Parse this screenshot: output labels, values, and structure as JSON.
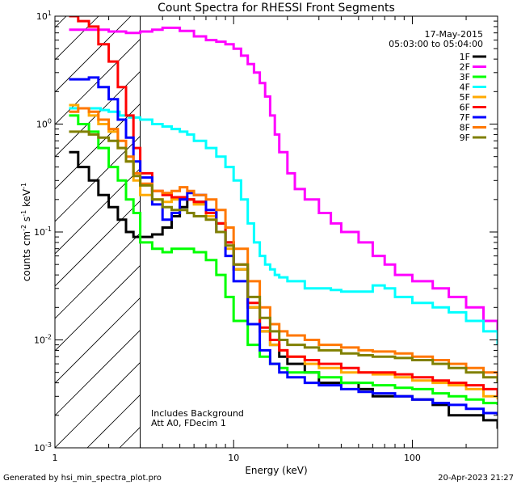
{
  "chart_data": {
    "type": "line",
    "title": "Count Spectra for RHESSI Front Segments",
    "xlabel": "Energy (keV)",
    "ylabel_parts": [
      "counts cm",
      "-2",
      " s",
      "-1",
      " keV",
      "-1"
    ],
    "xscale": "log",
    "yscale": "log",
    "xlim": [
      1,
      300
    ],
    "ylim": [
      0.001,
      10
    ],
    "x_ticks": [
      {
        "value": 1,
        "label": "1"
      },
      {
        "value": 10,
        "label": "10"
      },
      {
        "value": 100,
        "label": "100"
      }
    ],
    "y_ticks": [
      {
        "value": 0.001,
        "base": "10",
        "exp": "-3"
      },
      {
        "value": 0.01,
        "base": "10",
        "exp": "-2"
      },
      {
        "value": 0.1,
        "base": "10",
        "exp": "-1"
      },
      {
        "value": 1,
        "base": "10",
        "exp": "0"
      },
      {
        "value": 10,
        "base": "10",
        "exp": "1"
      }
    ],
    "date": "17-May-2015",
    "time_range": "05:03:00 to 05:04:00",
    "annotations": [
      "Includes Background",
      "Att A0, FDecim 1"
    ],
    "hatched_region": [
      1,
      3
    ],
    "series": [
      {
        "name": "1F",
        "color": "#000000",
        "x": [
          1.2,
          1.35,
          1.55,
          1.75,
          2.0,
          2.25,
          2.5,
          2.75,
          3.0,
          3.5,
          4.0,
          4.5,
          5.0,
          5.5,
          6.0,
          7.0,
          8.0,
          9.0,
          10.0,
          12,
          14,
          16,
          18,
          20,
          25,
          30,
          40,
          50,
          60,
          80,
          100,
          130,
          160,
          200,
          250,
          300
        ],
        "y": [
          0.55,
          0.4,
          0.3,
          0.22,
          0.17,
          0.13,
          0.1,
          0.09,
          0.09,
          0.095,
          0.11,
          0.14,
          0.17,
          0.2,
          0.19,
          0.15,
          0.12,
          0.08,
          0.045,
          0.02,
          0.012,
          0.009,
          0.007,
          0.006,
          0.005,
          0.004,
          0.004,
          0.0035,
          0.003,
          0.003,
          0.0028,
          0.0025,
          0.002,
          0.002,
          0.0018,
          0.0015
        ]
      },
      {
        "name": "2F",
        "color": "#ff00ff",
        "x": [
          1.2,
          1.5,
          2.0,
          2.5,
          3.0,
          3.5,
          4.0,
          5.0,
          6.0,
          7.0,
          8.0,
          9.0,
          10.0,
          11.0,
          12.0,
          13.0,
          14.0,
          15.0,
          16.0,
          17.0,
          18.0,
          20.0,
          22,
          25,
          30,
          35,
          40,
          50,
          60,
          70,
          80,
          100,
          130,
          160,
          200,
          250,
          300
        ],
        "y": [
          7.5,
          7.5,
          7.2,
          7.0,
          7.2,
          7.5,
          7.8,
          7.3,
          6.5,
          6.0,
          5.8,
          5.5,
          5.0,
          4.3,
          3.6,
          3.0,
          2.4,
          1.8,
          1.2,
          0.8,
          0.55,
          0.35,
          0.25,
          0.2,
          0.15,
          0.12,
          0.1,
          0.08,
          0.06,
          0.05,
          0.04,
          0.035,
          0.03,
          0.025,
          0.02,
          0.015,
          0.009
        ]
      },
      {
        "name": "3F",
        "color": "#00ff00",
        "x": [
          1.2,
          1.35,
          1.55,
          1.75,
          2.0,
          2.25,
          2.5,
          2.75,
          3.0,
          3.5,
          4.0,
          4.5,
          5.0,
          5.5,
          6.0,
          7.0,
          8.0,
          9.0,
          10.0,
          12,
          14,
          16,
          18,
          20,
          25,
          30,
          40,
          50,
          60,
          80,
          100,
          130,
          160,
          200,
          250,
          300
        ],
        "y": [
          1.2,
          1.0,
          0.85,
          0.6,
          0.4,
          0.3,
          0.2,
          0.15,
          0.08,
          0.07,
          0.065,
          0.07,
          0.07,
          0.07,
          0.065,
          0.055,
          0.04,
          0.025,
          0.015,
          0.009,
          0.007,
          0.006,
          0.0055,
          0.005,
          0.005,
          0.0045,
          0.004,
          0.004,
          0.0038,
          0.0036,
          0.0035,
          0.0032,
          0.003,
          0.0028,
          0.0026,
          0.0025
        ]
      },
      {
        "name": "4F",
        "color": "#00ffff",
        "x": [
          1.2,
          1.4,
          1.6,
          1.8,
          2.0,
          2.3,
          2.6,
          3.0,
          3.5,
          4.0,
          4.5,
          5.0,
          5.5,
          6.0,
          7.0,
          8.0,
          9.0,
          10.0,
          11.0,
          12.0,
          13.0,
          14.0,
          15.0,
          16.0,
          17.0,
          18.0,
          20,
          25,
          30,
          35,
          40,
          50,
          60,
          70,
          80,
          100,
          130,
          160,
          200,
          250,
          300
        ],
        "y": [
          1.4,
          1.4,
          1.4,
          1.35,
          1.3,
          1.2,
          1.15,
          1.1,
          1.0,
          0.95,
          0.9,
          0.85,
          0.8,
          0.7,
          0.6,
          0.5,
          0.4,
          0.3,
          0.2,
          0.12,
          0.08,
          0.06,
          0.05,
          0.045,
          0.04,
          0.038,
          0.035,
          0.03,
          0.03,
          0.029,
          0.028,
          0.028,
          0.032,
          0.03,
          0.025,
          0.022,
          0.02,
          0.018,
          0.015,
          0.012,
          0.009
        ]
      },
      {
        "name": "5F",
        "color": "#ffaa00",
        "x": [
          1.2,
          1.35,
          1.55,
          1.75,
          2.0,
          2.25,
          2.5,
          2.75,
          3.0,
          3.5,
          4.0,
          4.5,
          5.0,
          5.5,
          6.0,
          7.0,
          8.0,
          9.0,
          10.0,
          12,
          14,
          16,
          18,
          20,
          25,
          30,
          40,
          50,
          60,
          80,
          100,
          130,
          160,
          200,
          250,
          300
        ],
        "y": [
          1.5,
          1.4,
          1.2,
          1.0,
          0.85,
          0.6,
          0.45,
          0.3,
          0.22,
          0.2,
          0.19,
          0.2,
          0.21,
          0.2,
          0.18,
          0.14,
          0.1,
          0.07,
          0.045,
          0.02,
          0.012,
          0.009,
          0.008,
          0.007,
          0.006,
          0.0055,
          0.005,
          0.005,
          0.0048,
          0.0045,
          0.0042,
          0.004,
          0.0038,
          0.0035,
          0.003,
          0.0028
        ]
      },
      {
        "name": "6F",
        "color": "#ff0000",
        "x": [
          1.2,
          1.35,
          1.55,
          1.75,
          2.0,
          2.25,
          2.5,
          2.75,
          3.0,
          3.5,
          4.0,
          4.5,
          5.0,
          5.5,
          6.0,
          7.0,
          8.0,
          9.0,
          10.0,
          12,
          14,
          16,
          18,
          20,
          25,
          30,
          40,
          50,
          60,
          80,
          100,
          130,
          160,
          200,
          250,
          300
        ],
        "y": [
          10.0,
          9.0,
          8.0,
          5.5,
          3.8,
          2.2,
          1.2,
          0.6,
          0.35,
          0.24,
          0.22,
          0.21,
          0.21,
          0.2,
          0.19,
          0.15,
          0.12,
          0.08,
          0.05,
          0.022,
          0.013,
          0.01,
          0.008,
          0.007,
          0.0065,
          0.006,
          0.0055,
          0.005,
          0.005,
          0.0048,
          0.0045,
          0.0042,
          0.004,
          0.0038,
          0.0035,
          0.003
        ]
      },
      {
        "name": "7F",
        "color": "#0000ff",
        "x": [
          1.2,
          1.35,
          1.55,
          1.75,
          2.0,
          2.25,
          2.5,
          2.75,
          3.0,
          3.5,
          4.0,
          4.5,
          5.0,
          5.5,
          6.0,
          7.0,
          8.0,
          9.0,
          10.0,
          12,
          14,
          16,
          18,
          20,
          25,
          30,
          40,
          50,
          60,
          80,
          100,
          130,
          160,
          200,
          250,
          300
        ],
        "y": [
          2.6,
          2.6,
          2.7,
          2.2,
          1.7,
          1.1,
          0.75,
          0.45,
          0.32,
          0.18,
          0.13,
          0.15,
          0.2,
          0.23,
          0.22,
          0.16,
          0.1,
          0.06,
          0.035,
          0.014,
          0.008,
          0.006,
          0.005,
          0.0045,
          0.004,
          0.0038,
          0.0035,
          0.0033,
          0.0032,
          0.003,
          0.0028,
          0.0026,
          0.0025,
          0.0023,
          0.0021,
          0.002
        ]
      },
      {
        "name": "8F",
        "color": "#ff7700",
        "x": [
          1.2,
          1.35,
          1.55,
          1.75,
          2.0,
          2.25,
          2.5,
          2.75,
          3.0,
          3.5,
          4.0,
          4.5,
          5.0,
          5.5,
          6.0,
          7.0,
          8.0,
          9.0,
          10.0,
          12,
          14,
          16,
          18,
          20,
          25,
          30,
          40,
          50,
          60,
          80,
          100,
          130,
          160,
          200,
          250,
          300
        ],
        "y": [
          1.3,
          1.4,
          1.3,
          1.1,
          0.9,
          0.7,
          0.5,
          0.35,
          0.28,
          0.24,
          0.23,
          0.24,
          0.26,
          0.24,
          0.22,
          0.2,
          0.16,
          0.11,
          0.07,
          0.035,
          0.02,
          0.014,
          0.012,
          0.011,
          0.01,
          0.009,
          0.0085,
          0.008,
          0.0078,
          0.0075,
          0.007,
          0.0065,
          0.006,
          0.0055,
          0.005,
          0.0045
        ]
      },
      {
        "name": "9F",
        "color": "#808000",
        "x": [
          1.2,
          1.35,
          1.55,
          1.75,
          2.0,
          2.25,
          2.5,
          2.75,
          3.0,
          3.5,
          4.0,
          4.5,
          5.0,
          5.5,
          6.0,
          7.0,
          8.0,
          9.0,
          10.0,
          12,
          14,
          16,
          18,
          20,
          25,
          30,
          40,
          50,
          60,
          80,
          100,
          130,
          160,
          200,
          250,
          300
        ],
        "y": [
          0.85,
          0.85,
          0.8,
          0.75,
          0.7,
          0.6,
          0.45,
          0.33,
          0.27,
          0.2,
          0.17,
          0.16,
          0.16,
          0.15,
          0.14,
          0.13,
          0.1,
          0.075,
          0.05,
          0.025,
          0.016,
          0.012,
          0.01,
          0.009,
          0.0085,
          0.008,
          0.0075,
          0.0072,
          0.007,
          0.0068,
          0.0065,
          0.006,
          0.0055,
          0.005,
          0.0045,
          0.004
        ]
      }
    ]
  },
  "footer": {
    "generated_by": "Generated by hsi_min_spectra_plot.pro",
    "timestamp": "20-Apr-2023 21:27"
  }
}
